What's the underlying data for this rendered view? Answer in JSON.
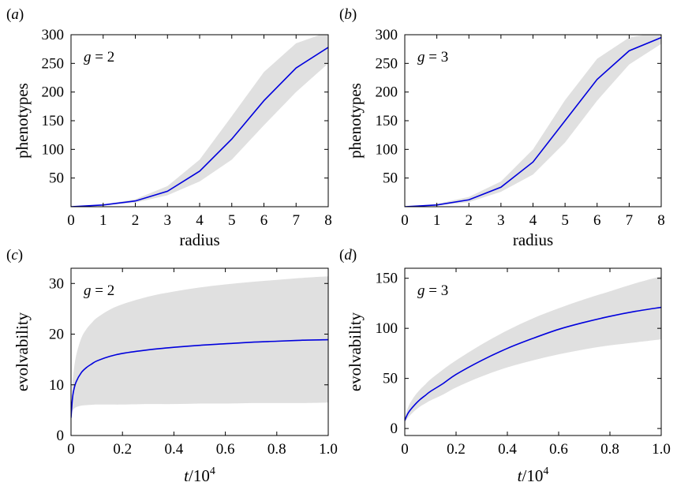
{
  "chart_data": [
    {
      "type": "line",
      "panel": "(a)",
      "panel_letter": "a",
      "annotation_var": "g",
      "annotation_rest": " = 2",
      "xlabel": "radius",
      "ylabel": "phenotypes",
      "x_ticks": [
        "0",
        "1",
        "2",
        "3",
        "4",
        "5",
        "6",
        "7",
        "8"
      ],
      "y_ticks": [
        "50",
        "100",
        "150",
        "200",
        "250",
        "300"
      ],
      "xlim": [
        0,
        8
      ],
      "ylim": [
        0,
        300
      ],
      "line_color": "#0000dd",
      "band_color": "#e0e0e0",
      "x": [
        0,
        1,
        2,
        3,
        4,
        5,
        6,
        7,
        8
      ],
      "values": [
        0,
        3,
        10,
        27,
        62,
        118,
        185,
        242,
        278
      ],
      "band_lower": [
        0,
        2,
        7,
        20,
        44,
        82,
        142,
        200,
        250
      ],
      "band_upper": [
        0,
        4,
        13,
        36,
        82,
        158,
        235,
        285,
        305
      ]
    },
    {
      "type": "line",
      "panel": "(b)",
      "panel_letter": "b",
      "annotation_var": "g",
      "annotation_rest": " = 3",
      "xlabel": "radius",
      "ylabel": "phenotypes",
      "x_ticks": [
        "0",
        "1",
        "2",
        "3",
        "4",
        "5",
        "6",
        "7",
        "8"
      ],
      "y_ticks": [
        "50",
        "100",
        "150",
        "200",
        "250",
        "300"
      ],
      "xlim": [
        0,
        8
      ],
      "ylim": [
        0,
        300
      ],
      "line_color": "#0000dd",
      "band_color": "#e0e0e0",
      "x": [
        0,
        1,
        2,
        3,
        4,
        5,
        6,
        7,
        8
      ],
      "values": [
        0,
        3,
        12,
        34,
        78,
        150,
        222,
        272,
        295
      ],
      "band_lower": [
        0,
        2,
        8,
        26,
        56,
        112,
        185,
        248,
        284
      ],
      "band_upper": [
        0,
        5,
        17,
        44,
        100,
        186,
        258,
        295,
        305
      ]
    },
    {
      "type": "line",
      "panel": "(c)",
      "panel_letter": "c",
      "annotation_var": "g",
      "annotation_rest": " = 2",
      "xlabel_var": "t",
      "xlabel_rest": "/10",
      "xlabel_sup": "4",
      "ylabel": "evolvability",
      "x_ticks": [
        "0",
        "0.2",
        "0.4",
        "0.6",
        "0.8",
        "1.0"
      ],
      "y_ticks": [
        "0",
        "10",
        "20",
        "30"
      ],
      "xlim": [
        0,
        1.0
      ],
      "ylim": [
        0,
        33
      ],
      "line_color": "#0000dd",
      "band_color": "#e0e0e0",
      "x": [
        0,
        0.005,
        0.01,
        0.02,
        0.04,
        0.06,
        0.08,
        0.1,
        0.15,
        0.2,
        0.3,
        0.4,
        0.5,
        0.6,
        0.7,
        0.8,
        0.9,
        1.0
      ],
      "values": [
        3.5,
        7.0,
        8.8,
        10.6,
        12.4,
        13.4,
        14.1,
        14.7,
        15.6,
        16.2,
        16.9,
        17.4,
        17.8,
        18.1,
        18.4,
        18.6,
        18.8,
        18.9
      ],
      "band_lower": [
        3.5,
        4.8,
        5.2,
        5.6,
        5.9,
        6.0,
        6.05,
        6.1,
        6.1,
        6.1,
        6.2,
        6.2,
        6.3,
        6.3,
        6.4,
        6.4,
        6.4,
        6.5
      ],
      "band_upper": [
        3.5,
        9.5,
        12.5,
        15.8,
        19.2,
        21.0,
        22.2,
        23.2,
        24.8,
        25.9,
        27.4,
        28.4,
        29.2,
        29.8,
        30.3,
        30.7,
        31.1,
        31.4
      ]
    },
    {
      "type": "line",
      "panel": "(d)",
      "panel_letter": "d",
      "annotation_var": "g",
      "annotation_rest": " = 3",
      "xlabel_var": "t",
      "xlabel_rest": "/10",
      "xlabel_sup": "4",
      "ylabel": "evolvability",
      "x_ticks": [
        "0",
        "0.2",
        "0.4",
        "0.6",
        "0.8",
        "1.0"
      ],
      "y_ticks": [
        "0",
        "50",
        "100",
        "150"
      ],
      "xlim": [
        0,
        1.0
      ],
      "ylim": [
        -7,
        160
      ],
      "line_color": "#0000dd",
      "band_color": "#e0e0e0",
      "x": [
        0,
        0.01,
        0.02,
        0.04,
        0.06,
        0.08,
        0.1,
        0.15,
        0.2,
        0.3,
        0.4,
        0.5,
        0.6,
        0.7,
        0.8,
        0.9,
        1.0
      ],
      "values": [
        8,
        14,
        18,
        24,
        29,
        33,
        37,
        45,
        54,
        68,
        80,
        90,
        99,
        106,
        112,
        117,
        121
      ],
      "band_lower": [
        6,
        10,
        13,
        18,
        22,
        25,
        28,
        34,
        41,
        52,
        61,
        68,
        74,
        79,
        83,
        86,
        89
      ],
      "band_upper": [
        10,
        19,
        25,
        33,
        39,
        44,
        49,
        59,
        68,
        84,
        98,
        110,
        120,
        129,
        137,
        145,
        152
      ]
    }
  ]
}
